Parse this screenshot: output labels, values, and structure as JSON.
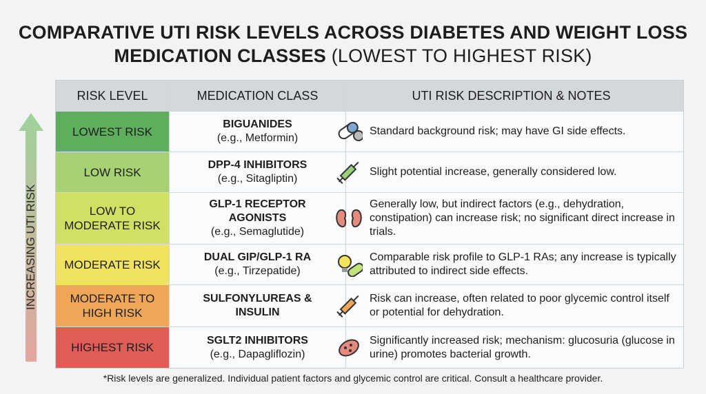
{
  "title": {
    "main": "COMPARATIVE UTI RISK LEVELS ACROSS DIABETES AND WEIGHT LOSS MEDICATION CLASSES",
    "qualifier": "(LOWEST TO HIGHEST RISK)"
  },
  "side_label": "INCREASING UTI RISK",
  "table": {
    "headers": [
      "RISK LEVEL",
      "MEDICATION CLASS",
      "UTI RISK DESCRIPTION & NOTES"
    ],
    "rows": [
      {
        "risk": "LOWEST RISK",
        "color": "#5eae5e",
        "class": "BIGUANIDES",
        "example": "(e.g., Metformin)",
        "description": "Standard background risk; may have GI side effects."
      },
      {
        "risk": "LOW RISK",
        "color": "#a7d173",
        "class": "DPP-4 INHIBITORS",
        "example": "(e.g., Sitagliptin)",
        "description": "Slight potential increase, generally considered low."
      },
      {
        "risk": "LOW TO MODERATE RISK",
        "color": "#cfe062",
        "class": "GLP-1 RECEPTOR AGONISTS",
        "example": "(e.g., Semaglutide)",
        "description": "Generally low, but indirect factors (e.g., dehydration, constipation) can increase risk; no significant direct increase in trials."
      },
      {
        "risk": "MODERATE RISK",
        "color": "#f2e35e",
        "class": "DUAL GIP/GLP-1 RA",
        "example": "(e.g., Tirzepatide)",
        "description": "Comparable risk profile to GLP-1 RAs; any increase is typically attributed to indirect side effects."
      },
      {
        "risk": "MODERATE TO HIGH RISK",
        "color": "#f0a657",
        "class": "SULFONYLUREAS & INSULIN",
        "example": null,
        "description": "Risk can increase, often related to poor glycemic control itself or potential for dehydration."
      },
      {
        "risk": "HIGHEST RISK",
        "color": "#e05c57",
        "class": "SGLT2 INHIBITORS",
        "example": "(e.g., Dapagliflozin)",
        "description": "Significantly increased risk; mechanism: glucosuria (glucose in urine) promotes bacterial growth."
      }
    ]
  },
  "footnote": "*Risk levels are generalized. Individual patient factors and glycemic control are critical. Consult a healthcare provider."
}
